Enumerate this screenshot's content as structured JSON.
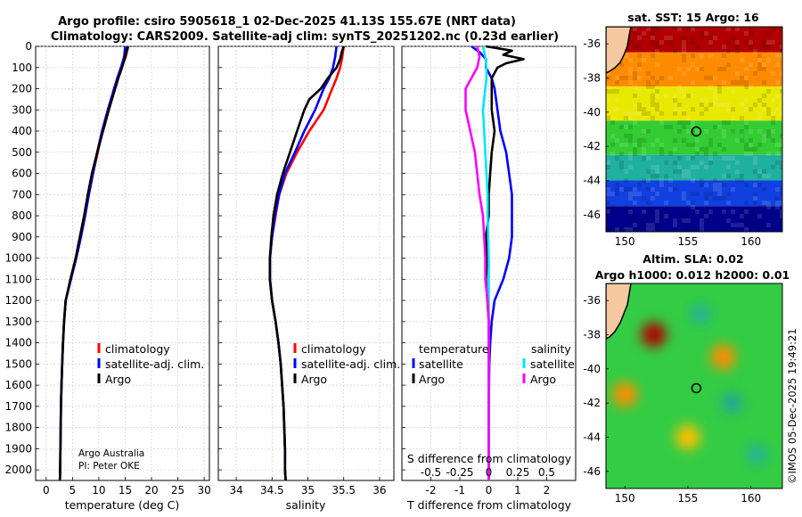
{
  "title": {
    "line1": "Argo profile: csiro 5905618_1 02-Dec-2025 41.13S 155.67E (NRT data)",
    "line2": "Climatology: CARS2009. Satellite-adj clim: synTS_20251202.nc (0.23d earlier)"
  },
  "credits": {
    "line1": "Argo Australia",
    "line2": "PI: Peter OKE"
  },
  "watermark": "©IMOS 05-Dec-2025 19:49:21",
  "colors": {
    "climatology": "#ff0000",
    "satellite_adj": "#0000ff",
    "argo": "#000000",
    "satellite": "#00e5ff",
    "argo_s": "#ff00ff",
    "land": "#f5c8a0"
  },
  "chart_data": [
    {
      "id": "temperature",
      "type": "line",
      "xlabel": "temperature (deg C)",
      "ylabel": "",
      "xlim": [
        -2,
        31
      ],
      "ylim": [
        2050,
        0
      ],
      "xticks": [
        0,
        5,
        10,
        15,
        20,
        25,
        30
      ],
      "xtick_labels": [
        "0",
        "5",
        "10",
        "15",
        "20",
        "25",
        "30"
      ],
      "yticks": [
        0,
        100,
        200,
        300,
        400,
        500,
        600,
        700,
        800,
        900,
        1000,
        1100,
        1200,
        1300,
        1400,
        1500,
        1600,
        1700,
        1800,
        1900,
        2000
      ],
      "ytick_labels": [
        "0",
        "100",
        "200",
        "300",
        "400",
        "500",
        "600",
        "700",
        "800",
        "900",
        "1000",
        "1100",
        "1200",
        "1300",
        "1400",
        "1500",
        "1600",
        "1700",
        "1800",
        "1900",
        "2000"
      ],
      "legend": [
        "climatology",
        "satellite-adj. clim.",
        "Argo"
      ],
      "series": [
        {
          "name": "climatology",
          "color": "#ff0000",
          "depth": [
            0,
            50,
            100,
            150,
            200,
            300,
            400,
            500,
            600,
            700,
            800,
            900,
            1000,
            1100,
            1200,
            1300,
            1400,
            1500,
            1600,
            1700,
            1800,
            1900,
            2000,
            2050
          ],
          "values": [
            15.6,
            15.1,
            14.3,
            13.6,
            13.0,
            11.8,
            10.7,
            9.8,
            8.9,
            8.1,
            7.4,
            6.6,
            5.7,
            4.7,
            3.7,
            3.4,
            3.2,
            3.05,
            2.9,
            2.8,
            2.75,
            2.7,
            2.65,
            2.6
          ]
        },
        {
          "name": "satellite-adj. clim.",
          "color": "#0000ff",
          "depth": [
            0,
            50,
            100,
            150,
            200,
            300,
            400,
            500,
            600,
            700,
            800,
            900,
            1000,
            1100,
            1200,
            1300,
            1400,
            1500,
            1600,
            1700,
            1800,
            1900,
            2000,
            2050
          ],
          "values": [
            15.0,
            14.8,
            14.2,
            13.5,
            12.9,
            11.7,
            10.6,
            9.7,
            8.9,
            8.1,
            7.4,
            6.6,
            5.7,
            4.7,
            3.7,
            3.4,
            3.2,
            3.05,
            2.9,
            2.8,
            2.75,
            2.7,
            2.65,
            2.6
          ]
        },
        {
          "name": "Argo",
          "color": "#000000",
          "depth": [
            0,
            20,
            50,
            100,
            150,
            200,
            300,
            400,
            500,
            600,
            700,
            800,
            900,
            1000,
            1100,
            1200,
            1300,
            1400,
            1500,
            1600,
            1700,
            1800,
            1900,
            2000,
            2050
          ],
          "values": [
            15.5,
            15.3,
            15.0,
            14.4,
            13.7,
            13.1,
            11.9,
            10.8,
            9.7,
            8.7,
            7.9,
            7.2,
            6.4,
            5.6,
            4.6,
            3.7,
            3.4,
            3.2,
            3.05,
            2.9,
            2.8,
            2.75,
            2.7,
            2.65,
            2.6
          ]
        }
      ]
    },
    {
      "id": "salinity",
      "type": "line",
      "xlabel": "salinity",
      "xlim": [
        33.75,
        36.2
      ],
      "ylim": [
        2050,
        0
      ],
      "xticks": [
        34,
        34.5,
        35,
        35.5,
        36
      ],
      "xtick_labels": [
        "34",
        "34.5",
        "35",
        "35.5",
        "36"
      ],
      "legend": [
        "climatology",
        "satellite-adj. clim.",
        "Argo"
      ],
      "series": [
        {
          "name": "climatology",
          "color": "#ff0000",
          "depth": [
            0,
            50,
            100,
            150,
            200,
            300,
            400,
            500,
            600,
            700,
            800,
            900,
            1000,
            1100,
            1200,
            1300,
            1400,
            1500,
            1600,
            1700,
            1800,
            1900,
            2000,
            2050
          ],
          "values": [
            35.5,
            35.48,
            35.45,
            35.4,
            35.34,
            35.22,
            35.02,
            34.85,
            34.7,
            34.6,
            34.55,
            34.5,
            34.47,
            34.47,
            34.5,
            34.55,
            34.59,
            34.62,
            34.64,
            34.66,
            34.67,
            34.68,
            34.68,
            34.69
          ]
        },
        {
          "name": "satellite-adj. clim.",
          "color": "#0000ff",
          "depth": [
            0,
            50,
            100,
            150,
            200,
            300,
            400,
            500,
            600,
            700,
            800,
            900,
            1000,
            1100,
            1200,
            1300,
            1400,
            1500,
            1600,
            1700,
            1800,
            1900,
            2000,
            2050
          ],
          "values": [
            35.4,
            35.38,
            35.35,
            35.3,
            35.22,
            35.1,
            34.95,
            34.82,
            34.68,
            34.6,
            34.54,
            34.5,
            34.47,
            34.47,
            34.5,
            34.55,
            34.59,
            34.62,
            34.64,
            34.66,
            34.67,
            34.68,
            34.68,
            34.69
          ]
        },
        {
          "name": "Argo",
          "color": "#000000",
          "depth": [
            0,
            30,
            60,
            100,
            150,
            200,
            250,
            300,
            400,
            500,
            600,
            700,
            800,
            900,
            1000,
            1100,
            1200,
            1300,
            1400,
            1500,
            1600,
            1700,
            1800,
            1900,
            2000,
            2050
          ],
          "values": [
            35.5,
            35.47,
            35.45,
            35.4,
            35.28,
            35.18,
            35.02,
            34.95,
            34.85,
            34.75,
            34.65,
            34.57,
            34.52,
            34.49,
            34.47,
            34.47,
            34.5,
            34.55,
            34.59,
            34.62,
            34.64,
            34.66,
            34.67,
            34.68,
            34.68,
            34.69
          ]
        }
      ]
    },
    {
      "id": "difference",
      "type": "line",
      "xlabel": "T difference from climatology",
      "xlabel2": "S difference from climatology",
      "xlim": [
        -3,
        3
      ],
      "ylim": [
        2050,
        0
      ],
      "xticks": [
        -2,
        -1,
        0,
        1,
        2
      ],
      "xtick_labels": [
        "-2",
        "-1",
        "0",
        "1",
        "2"
      ],
      "s_ticks": [
        -0.5,
        -0.25,
        0,
        0.25,
        0.5
      ],
      "s_tick_labels": [
        "-0.5",
        "-0.25",
        "0",
        "0.25",
        "0.5"
      ],
      "legend_left_title": "temperature",
      "legend_right_title": "salinity",
      "legend_left": [
        "satellite",
        "Argo"
      ],
      "legend_right": [
        "satellite",
        "Argo"
      ],
      "series": [
        {
          "name": "T satellite",
          "color": "#0000ff",
          "depth": [
            0,
            30,
            60,
            100,
            150,
            200,
            300,
            400,
            500,
            600,
            700,
            800,
            900,
            1000,
            1100,
            1200,
            1300,
            1400,
            1500,
            1600,
            1700,
            1800,
            1900,
            2000,
            2050
          ],
          "values": [
            -0.6,
            -0.3,
            -0.1,
            -0.1,
            0.1,
            0.2,
            0.3,
            0.4,
            0.6,
            0.7,
            0.8,
            0.8,
            0.8,
            0.7,
            0.5,
            0.2,
            0.1,
            0.05,
            0.02,
            0.01,
            0.0,
            0.0,
            0.0,
            0.0,
            0.0
          ]
        },
        {
          "name": "T Argo",
          "color": "#000000",
          "depth": [
            0,
            20,
            40,
            60,
            80,
            100,
            150,
            200,
            300,
            400,
            500,
            600,
            700,
            800,
            900,
            1000,
            1100,
            1200,
            1300,
            1400,
            1500,
            1600,
            1700,
            1800,
            1900,
            2000,
            2050
          ],
          "values": [
            -0.1,
            0.8,
            0.5,
            1.2,
            0.6,
            0.3,
            0.1,
            0.1,
            0.1,
            0.2,
            0.1,
            0.05,
            0.0,
            0.0,
            -0.1,
            -0.05,
            -0.1,
            -0.05,
            0.0,
            0.0,
            0.0,
            0.0,
            0.0,
            0.0,
            0.0,
            0.0,
            0.0
          ]
        },
        {
          "name": "S satellite",
          "color": "#00e5ff",
          "depth": [
            0,
            50,
            100,
            150,
            200,
            300,
            400,
            500,
            600,
            700,
            800,
            900,
            1000,
            1100,
            1200,
            1300,
            1400,
            1500,
            1600,
            1700,
            1800,
            1900,
            2000,
            2050
          ],
          "values": [
            -0.05,
            -0.03,
            -0.02,
            -0.02,
            -0.03,
            -0.05,
            -0.04,
            -0.03,
            -0.02,
            -0.01,
            -0.01,
            -0.005,
            0.0,
            0.0,
            0.0,
            0.0,
            0.0,
            0.0,
            0.0,
            0.0,
            0.0,
            0.0,
            0.0,
            0.0
          ]
        },
        {
          "name": "S Argo",
          "color": "#ff00ff",
          "depth": [
            0,
            50,
            100,
            150,
            200,
            300,
            400,
            500,
            600,
            700,
            800,
            900,
            1000,
            1100,
            1200,
            1300,
            1400,
            1500,
            1600,
            1700,
            1800,
            1900,
            2000,
            2050
          ],
          "values": [
            -0.1,
            -0.08,
            -0.1,
            -0.15,
            -0.2,
            -0.2,
            -0.16,
            -0.12,
            -0.1,
            -0.08,
            -0.05,
            -0.04,
            -0.03,
            -0.03,
            -0.01,
            0.0,
            0.0,
            0.0,
            0.0,
            0.0,
            0.0,
            0.0,
            0.0,
            0.0
          ]
        }
      ]
    },
    {
      "id": "sst_map",
      "type": "heatmap",
      "title": "sat. SST: 15 Argo: 16",
      "xlim": [
        148.5,
        162.5
      ],
      "ylim": [
        -47,
        -35
      ],
      "xticks": [
        150,
        155,
        160
      ],
      "xtick_labels": [
        "150",
        "155",
        "160"
      ],
      "yticks": [
        -36,
        -38,
        -40,
        -42,
        -44,
        -46
      ],
      "ytick_labels": [
        "-36",
        "-38",
        "-40",
        "-42",
        "-44",
        "-46"
      ],
      "marker": {
        "lon": 155.67,
        "lat": -41.13
      },
      "bands": [
        {
          "lat_top": -35,
          "lat_bottom": -36.5,
          "color": "#b00000"
        },
        {
          "lat_top": -36.5,
          "lat_bottom": -38.5,
          "color": "#ff8c00"
        },
        {
          "lat_top": -38.5,
          "lat_bottom": -40.5,
          "color": "#e8e800"
        },
        {
          "lat_top": -40.5,
          "lat_bottom": -42.5,
          "color": "#33cc33"
        },
        {
          "lat_top": -42.5,
          "lat_bottom": -44,
          "color": "#20b0a0"
        },
        {
          "lat_top": -44,
          "lat_bottom": -45.5,
          "color": "#1040e0"
        },
        {
          "lat_top": -45.5,
          "lat_bottom": -47,
          "color": "#00008a"
        }
      ]
    },
    {
      "id": "sla_map",
      "type": "heatmap",
      "title": "Altim. SLA: 0.02",
      "subtitle": "Argo h1000: 0.012 h2000: 0.01",
      "xlim": [
        148.5,
        162.5
      ],
      "ylim": [
        -47,
        -35
      ],
      "xticks": [
        150,
        155,
        160
      ],
      "xtick_labels": [
        "150",
        "155",
        "160"
      ],
      "yticks": [
        -36,
        -38,
        -40,
        -42,
        -44,
        -46
      ],
      "ytick_labels": [
        "-36",
        "-38",
        "-40",
        "-42",
        "-44",
        "-46"
      ],
      "marker": {
        "lon": 155.67,
        "lat": -41.13
      },
      "base_color": "#33cc44",
      "features": [
        {
          "lon": 152.3,
          "lat": -38.0,
          "color": "#b00000",
          "kind": "high"
        },
        {
          "lon": 157.8,
          "lat": -39.3,
          "color": "#ff8c00",
          "kind": "high"
        },
        {
          "lon": 150.0,
          "lat": -41.5,
          "color": "#ff8c00",
          "kind": "high"
        },
        {
          "lon": 155.0,
          "lat": -44.0,
          "color": "#ffc000",
          "kind": "high"
        },
        {
          "lon": 156.0,
          "lat": -36.8,
          "color": "#20b0a0",
          "kind": "low"
        },
        {
          "lon": 158.5,
          "lat": -42.0,
          "color": "#20a0a0",
          "kind": "low"
        },
        {
          "lon": 160.5,
          "lat": -45.0,
          "color": "#20b0a0",
          "kind": "low"
        }
      ]
    }
  ]
}
